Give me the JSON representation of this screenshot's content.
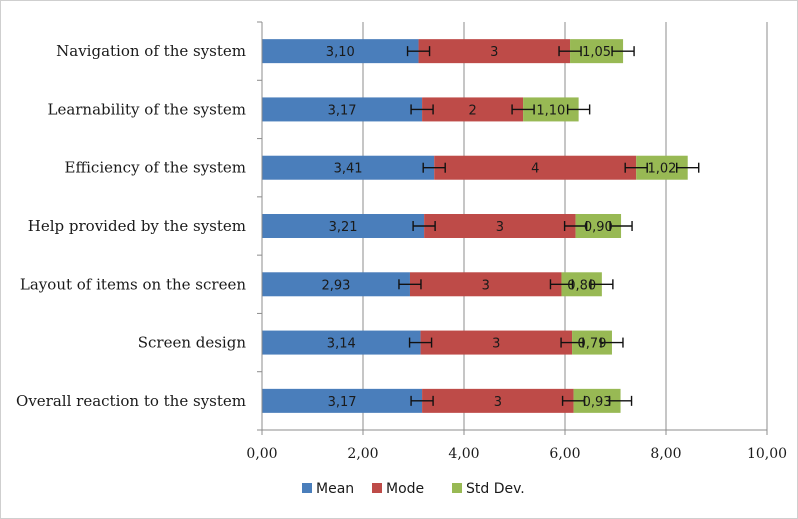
{
  "chart_data": {
    "type": "bar",
    "orientation": "horizontal",
    "stacked": true,
    "categories": [
      "Navigation of the system",
      "Learnability of the system",
      "Efficiency of the system",
      "Help provided by the system",
      "Layout of items on the screen",
      "Screen  design",
      "Overall reaction to the system"
    ],
    "series": [
      {
        "name": "Mean",
        "color": "#4a7ebb",
        "values": [
          3.1,
          3.17,
          3.41,
          3.21,
          2.93,
          3.14,
          3.17
        ],
        "labels": [
          "3,10",
          "3,17",
          "3,41",
          "3,21",
          "2,93",
          "3,14",
          "3,17"
        ]
      },
      {
        "name": "Mode",
        "color": "#be4b48",
        "values": [
          3,
          2,
          4,
          3,
          3,
          3,
          3
        ],
        "labels": [
          "3",
          "2",
          "4",
          "3",
          "3",
          "3",
          "3"
        ]
      },
      {
        "name": "Std Dev.",
        "color": "#98b954",
        "values": [
          1.05,
          1.1,
          1.02,
          0.9,
          0.8,
          0.79,
          0.93
        ],
        "labels": [
          "1,05",
          "1,10",
          "1,02",
          "0,90",
          "0,80",
          "0,79",
          "0,93"
        ]
      }
    ],
    "error_bars": true,
    "xlim": [
      0,
      10
    ],
    "xticks": [
      "0,00",
      "2,00",
      "4,00",
      "6,00",
      "8,00",
      "10,00"
    ],
    "grid": "vertical",
    "legend_position": "bottom"
  }
}
